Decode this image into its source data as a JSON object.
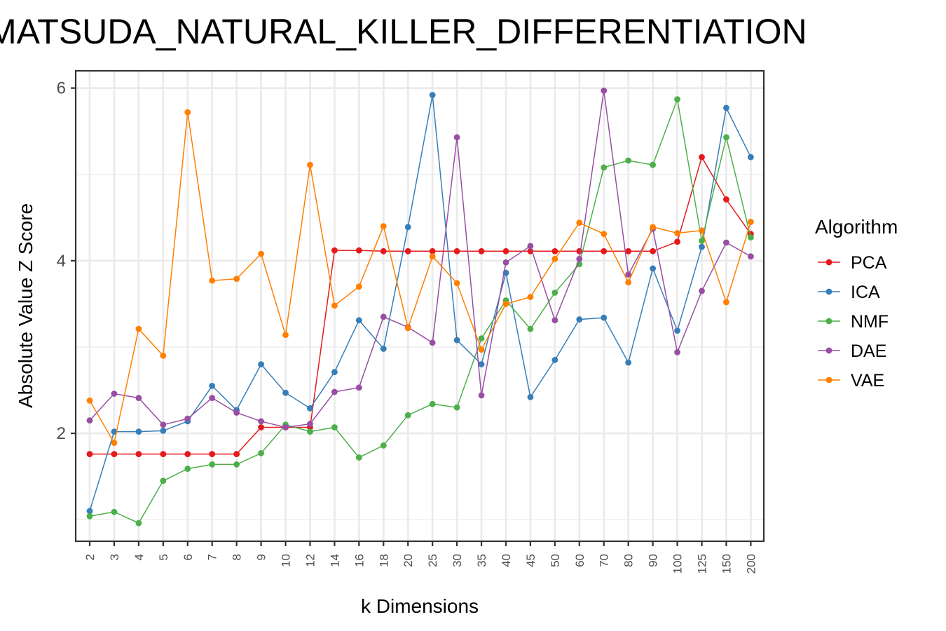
{
  "chart_data": {
    "type": "line",
    "title": "MATSUDA_NATURAL_KILLER_DIFFERENTIATION",
    "xlabel": "k Dimensions",
    "ylabel": "Absolute Value Z Score",
    "categories": [
      "2",
      "3",
      "4",
      "5",
      "6",
      "7",
      "8",
      "9",
      "10",
      "12",
      "14",
      "16",
      "18",
      "20",
      "25",
      "30",
      "35",
      "40",
      "45",
      "50",
      "60",
      "70",
      "80",
      "90",
      "100",
      "125",
      "150",
      "200"
    ],
    "ylim": [
      0.75,
      6.2
    ],
    "yticks": [
      2,
      4,
      6
    ],
    "grid": true,
    "legend": {
      "title": "Algorithm",
      "position": "right"
    },
    "series": [
      {
        "name": "PCA",
        "color": "#e41a1c",
        "values": [
          1.76,
          1.76,
          1.76,
          1.76,
          1.76,
          1.76,
          1.76,
          2.07,
          2.07,
          2.07,
          4.12,
          4.12,
          4.11,
          4.11,
          4.11,
          4.11,
          4.11,
          4.11,
          4.11,
          4.11,
          4.11,
          4.11,
          4.11,
          4.11,
          4.22,
          5.2,
          4.71,
          4.31
        ]
      },
      {
        "name": "ICA",
        "color": "#377eb8",
        "values": [
          1.1,
          2.02,
          2.02,
          2.03,
          2.14,
          2.55,
          2.27,
          2.8,
          2.47,
          2.29,
          2.71,
          3.31,
          2.98,
          4.39,
          5.92,
          3.08,
          2.8,
          3.86,
          2.42,
          2.85,
          3.32,
          3.34,
          2.82,
          3.91,
          3.19,
          4.16,
          5.77,
          5.2
        ]
      },
      {
        "name": "NMF",
        "color": "#4daf4a",
        "values": [
          1.04,
          1.09,
          0.96,
          1.45,
          1.59,
          1.64,
          1.64,
          1.77,
          2.1,
          2.02,
          2.07,
          1.72,
          1.86,
          2.21,
          2.34,
          2.3,
          3.1,
          3.54,
          3.21,
          3.63,
          3.96,
          5.08,
          5.16,
          5.11,
          5.87,
          4.23,
          5.43,
          4.27
        ]
      },
      {
        "name": "DAE",
        "color": "#984ea3",
        "values": [
          2.15,
          2.46,
          2.41,
          2.1,
          2.17,
          2.41,
          2.24,
          2.14,
          2.07,
          2.11,
          2.48,
          2.53,
          3.35,
          3.23,
          3.05,
          5.43,
          2.44,
          3.98,
          4.17,
          3.31,
          4.02,
          5.97,
          3.84,
          4.37,
          2.94,
          3.65,
          4.21,
          4.05
        ]
      },
      {
        "name": "VAE",
        "color": "#ff7f00",
        "values": [
          2.38,
          1.89,
          3.21,
          2.9,
          5.72,
          3.77,
          3.79,
          4.08,
          3.14,
          5.11,
          3.48,
          3.7,
          4.4,
          3.22,
          4.05,
          3.74,
          2.97,
          3.5,
          3.58,
          4.02,
          4.44,
          4.31,
          3.75,
          4.39,
          4.32,
          4.35,
          3.52,
          4.45
        ]
      }
    ]
  }
}
